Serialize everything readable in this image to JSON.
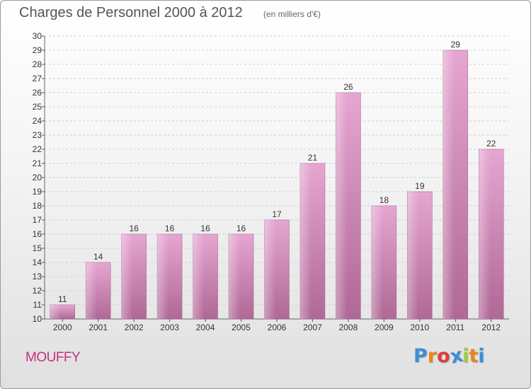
{
  "header": {
    "title": "Charges de Personnel 2000 à 2012",
    "subtitle": "(en milliers d'€)"
  },
  "footer": {
    "commune": "MOUFFY",
    "logo_letters": [
      "P",
      "r",
      "o",
      "x",
      "i",
      "t",
      "i"
    ],
    "logo_colors": [
      "#3d8fd6",
      "#e9851c",
      "#e33b3b",
      "#3d8fd6",
      "#9ccc3c",
      "#e9851c",
      "#3d8fd6"
    ]
  },
  "chart_data": {
    "type": "bar",
    "categories": [
      "2000",
      "2001",
      "2002",
      "2003",
      "2004",
      "2005",
      "2006",
      "2007",
      "2008",
      "2009",
      "2010",
      "2011",
      "2012"
    ],
    "values": [
      11,
      14,
      16,
      16,
      16,
      16,
      17,
      21,
      26,
      18,
      19,
      29,
      22
    ],
    "ylim": [
      10,
      30
    ],
    "yticks": [
      10,
      11,
      12,
      13,
      14,
      15,
      16,
      17,
      18,
      19,
      20,
      21,
      22,
      23,
      24,
      25,
      26,
      27,
      28,
      29,
      30
    ],
    "grid": true,
    "bar_color_top": "#e6a6d2",
    "bar_color_bottom": "#b06896"
  }
}
